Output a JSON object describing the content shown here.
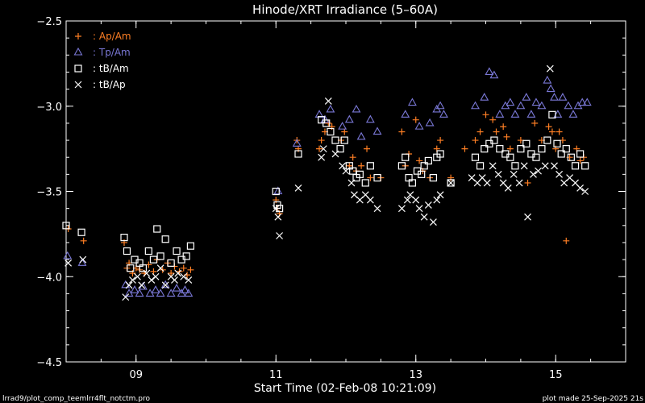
{
  "colors": {
    "background": "#000000",
    "axes": "#ffffff",
    "orange": "#ff7f24",
    "blue": "#7a78d6",
    "white": "#ffffff"
  },
  "footer": {
    "left": "lrrad9/plot_comp_teemlrr4flt_notctm.pro",
    "right": "plot made 25-Sep-2025 21s"
  },
  "chart_data": {
    "type": "scatter",
    "title": "Hinode/XRT Irradiance (5–60A)",
    "xlabel": "Start Time (02-Feb-08 10:21:09)",
    "ylabel": "",
    "xlim": [
      8.0,
      16.0
    ],
    "ylim": [
      -4.5,
      -2.5
    ],
    "x_ticks": [
      9,
      11,
      13,
      15
    ],
    "x_tick_labels": [
      "09",
      "11",
      "13",
      "15"
    ],
    "y_ticks": [
      -4.5,
      -4.0,
      -3.5,
      -3.0,
      -2.5
    ],
    "y_tick_labels": [
      "−4.5",
      "−4.0",
      "−3.5",
      "−3.0",
      "−2.5"
    ],
    "legend_position": "top-left",
    "series": [
      {
        "name": "Ap/Am",
        "legend_label": ": Ap/Am",
        "marker": "plus",
        "color": "#ff7f24",
        "x": [
          8.03,
          8.25,
          8.83,
          8.87,
          8.9,
          8.95,
          9.0,
          9.05,
          9.12,
          9.18,
          9.25,
          9.3,
          9.38,
          9.45,
          9.5,
          9.55,
          9.62,
          9.68,
          9.73,
          9.78,
          11.0,
          11.02,
          11.05,
          11.3,
          11.32,
          11.62,
          11.65,
          11.7,
          11.75,
          11.8,
          11.93,
          11.98,
          12.05,
          12.1,
          12.15,
          12.22,
          12.3,
          12.35,
          12.5,
          12.8,
          12.85,
          12.9,
          13.0,
          13.05,
          13.1,
          13.2,
          13.3,
          13.35,
          13.5,
          13.7,
          13.85,
          13.92,
          14.0,
          14.1,
          14.15,
          14.25,
          14.3,
          14.35,
          14.5,
          14.6,
          14.7,
          14.8,
          14.9,
          14.95,
          15.0,
          15.05,
          15.1,
          15.15,
          15.2,
          15.3,
          15.35,
          15.4
        ],
        "y": [
          -3.72,
          -3.79,
          -3.8,
          -3.95,
          -3.92,
          -3.98,
          -3.95,
          -3.96,
          -3.98,
          -3.93,
          -3.97,
          -3.9,
          -3.96,
          -3.92,
          -3.98,
          -3.94,
          -3.97,
          -3.95,
          -3.99,
          -3.96,
          -3.55,
          -3.6,
          -3.63,
          -3.2,
          -3.25,
          -3.25,
          -3.2,
          -3.15,
          -3.1,
          -3.12,
          -3.2,
          -3.15,
          -3.35,
          -3.3,
          -3.38,
          -3.35,
          -3.25,
          -3.42,
          -3.42,
          -3.15,
          -3.35,
          -3.28,
          -3.08,
          -3.32,
          -3.38,
          -3.42,
          -3.25,
          -3.2,
          -3.42,
          -3.25,
          -3.2,
          -3.15,
          -3.05,
          -3.08,
          -3.15,
          -3.12,
          -3.18,
          -3.25,
          -3.2,
          -3.45,
          -3.1,
          -3.2,
          -3.12,
          -3.15,
          -3.25,
          -3.15,
          -3.2,
          -3.79,
          -3.3,
          -3.25,
          -3.32,
          -3.3
        ]
      },
      {
        "name": "Tp/Am",
        "legend_label": ": Tp/Am",
        "marker": "triangle",
        "color": "#7a78d6",
        "x": [
          8.02,
          8.23,
          8.85,
          8.9,
          8.98,
          9.05,
          9.1,
          9.2,
          9.28,
          9.35,
          9.42,
          9.5,
          9.58,
          9.65,
          9.7,
          9.75,
          11.03,
          11.3,
          11.62,
          11.7,
          11.78,
          11.95,
          12.05,
          12.15,
          12.22,
          12.35,
          12.45,
          12.85,
          12.95,
          13.05,
          13.2,
          13.3,
          13.35,
          13.4,
          13.85,
          13.98,
          14.05,
          14.12,
          14.2,
          14.28,
          14.35,
          14.42,
          14.5,
          14.58,
          14.65,
          14.72,
          14.8,
          14.88,
          14.93,
          14.98,
          15.03,
          15.1,
          15.18,
          15.25,
          15.32,
          15.38,
          15.45
        ],
        "y": [
          -3.88,
          -3.92,
          -4.05,
          -4.1,
          -4.08,
          -4.1,
          -4.06,
          -4.1,
          -4.08,
          -4.1,
          -4.05,
          -4.1,
          -4.07,
          -4.1,
          -4.08,
          -4.1,
          -3.5,
          -3.22,
          -3.05,
          -3.08,
          -3.02,
          -3.12,
          -3.08,
          -3.02,
          -3.18,
          -3.08,
          -3.15,
          -3.05,
          -2.98,
          -3.12,
          -3.1,
          -3.02,
          -3.0,
          -3.05,
          -3.0,
          -2.95,
          -2.8,
          -2.82,
          -3.05,
          -3.0,
          -2.98,
          -3.05,
          -3.0,
          -2.95,
          -3.05,
          -2.98,
          -3.0,
          -2.85,
          -2.9,
          -2.95,
          -3.05,
          -2.95,
          -3.0,
          -3.05,
          -3.0,
          -2.98,
          -2.98
        ]
      },
      {
        "name": "tB/Am",
        "legend_label": ": tB/Am",
        "marker": "square",
        "color": "#ffffff",
        "x": [
          8.0,
          8.22,
          8.83,
          8.87,
          8.92,
          8.98,
          9.05,
          9.1,
          9.18,
          9.25,
          9.3,
          9.35,
          9.42,
          9.5,
          9.58,
          9.65,
          9.72,
          9.78,
          11.0,
          11.02,
          11.05,
          11.32,
          11.65,
          11.72,
          11.78,
          11.85,
          11.92,
          11.98,
          12.05,
          12.1,
          12.15,
          12.2,
          12.28,
          12.35,
          12.45,
          12.8,
          12.85,
          12.9,
          12.95,
          13.02,
          13.08,
          13.12,
          13.18,
          13.25,
          13.3,
          13.35,
          13.5,
          13.85,
          13.92,
          13.98,
          14.05,
          14.12,
          14.2,
          14.28,
          14.35,
          14.42,
          14.5,
          14.58,
          14.65,
          14.72,
          14.8,
          14.88,
          14.95,
          15.02,
          15.08,
          15.15,
          15.22,
          15.28,
          15.35,
          15.42
        ],
        "y": [
          -3.7,
          -3.74,
          -3.77,
          -3.85,
          -3.95,
          -3.9,
          -3.92,
          -3.95,
          -3.85,
          -3.9,
          -3.72,
          -3.88,
          -3.78,
          -3.92,
          -3.85,
          -3.9,
          -3.88,
          -3.82,
          -3.5,
          -3.58,
          -3.6,
          -3.28,
          -3.08,
          -3.1,
          -3.15,
          -3.2,
          -3.25,
          -3.2,
          -3.35,
          -3.38,
          -3.42,
          -3.4,
          -3.45,
          -3.35,
          -3.42,
          -3.35,
          -3.3,
          -3.42,
          -3.45,
          -3.38,
          -3.4,
          -3.35,
          -3.32,
          -3.42,
          -3.3,
          -3.28,
          -3.45,
          -3.3,
          -3.35,
          -3.25,
          -3.22,
          -3.2,
          -3.25,
          -3.28,
          -3.3,
          -3.35,
          -3.25,
          -3.22,
          -3.28,
          -3.3,
          -3.25,
          -3.2,
          -3.05,
          -3.22,
          -3.28,
          -3.25,
          -3.3,
          -3.35,
          -3.28,
          -3.35
        ]
      },
      {
        "name": "tB/Ap",
        "legend_label": ": tB/Ap",
        "marker": "cross",
        "color": "#ffffff",
        "x": [
          8.03,
          8.24,
          8.85,
          8.9,
          8.95,
          9.02,
          9.08,
          9.15,
          9.22,
          9.28,
          9.35,
          9.42,
          9.5,
          9.55,
          9.6,
          9.68,
          9.75,
          11.0,
          11.03,
          11.05,
          11.32,
          11.65,
          11.68,
          11.75,
          11.85,
          11.95,
          12.0,
          12.08,
          12.12,
          12.2,
          12.28,
          12.35,
          12.45,
          12.8,
          12.88,
          12.92,
          13.0,
          13.05,
          13.12,
          13.18,
          13.25,
          13.3,
          13.35,
          13.5,
          13.8,
          13.88,
          13.95,
          14.02,
          14.1,
          14.18,
          14.25,
          14.32,
          14.4,
          14.48,
          14.55,
          14.6,
          14.68,
          14.75,
          14.85,
          14.92,
          14.98,
          15.05,
          15.12,
          15.2,
          15.28,
          15.35,
          15.42
        ],
        "y": [
          -3.92,
          -3.9,
          -4.12,
          -4.05,
          -4.02,
          -4.0,
          -4.05,
          -3.98,
          -4.02,
          -4.0,
          -3.95,
          -4.05,
          -4.0,
          -4.02,
          -3.98,
          -4.0,
          -4.02,
          -3.6,
          -3.65,
          -3.76,
          -3.48,
          -3.3,
          -3.25,
          -2.97,
          -3.28,
          -3.35,
          -3.38,
          -3.45,
          -3.52,
          -3.55,
          -3.52,
          -3.55,
          -3.6,
          -3.6,
          -3.55,
          -3.52,
          -3.55,
          -3.6,
          -3.65,
          -3.58,
          -3.68,
          -3.55,
          -3.52,
          -3.45,
          -3.42,
          -3.45,
          -3.42,
          -3.45,
          -3.35,
          -3.4,
          -3.45,
          -3.48,
          -3.4,
          -3.45,
          -3.35,
          -3.65,
          -3.4,
          -3.38,
          -3.35,
          -2.78,
          -3.35,
          -3.4,
          -3.45,
          -3.42,
          -3.45,
          -3.48,
          -3.5
        ]
      }
    ]
  }
}
